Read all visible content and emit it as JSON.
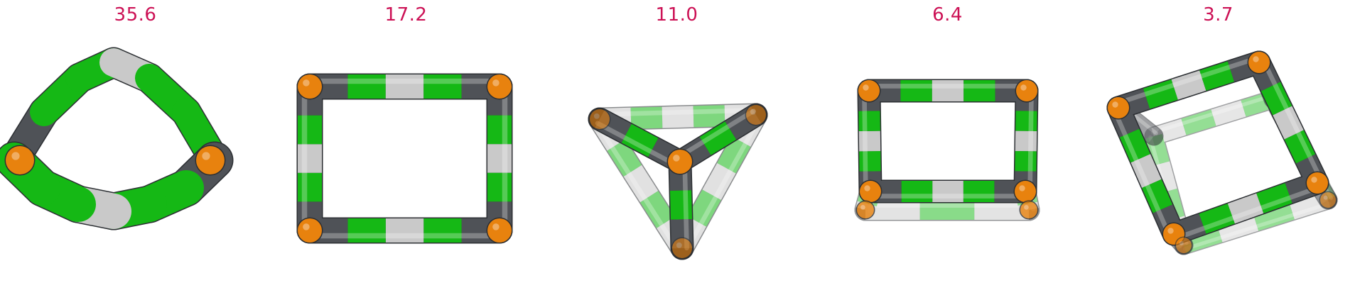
{
  "colors": {
    "label": "#cc1155",
    "green": "#15b815",
    "light": "#c9c9c9",
    "dark": "#4f5257",
    "orange": "#e8820e"
  },
  "structures": [
    {
      "label": "35.6",
      "shape": "ring"
    },
    {
      "label": "17.2",
      "shape": "square"
    },
    {
      "label": "11.0",
      "shape": "tetrahedron"
    },
    {
      "label": "6.4",
      "shape": "trigonal-prism"
    },
    {
      "label": "3.7",
      "shape": "cube"
    }
  ]
}
